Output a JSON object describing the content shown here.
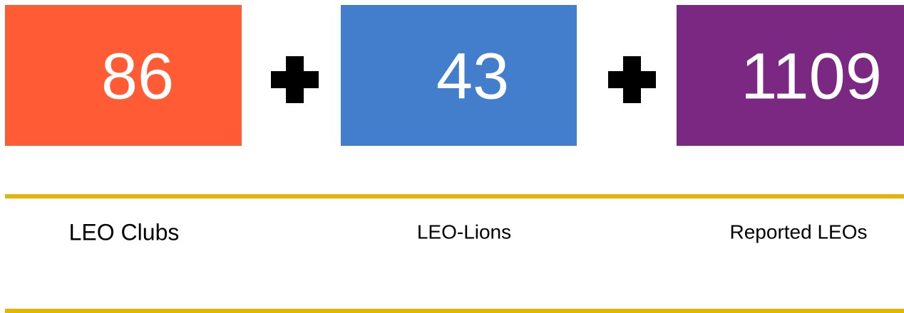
{
  "cards": [
    {
      "value": 86,
      "label": "LEO Clubs"
    },
    {
      "value": 43,
      "label": "LEO-Lions"
    },
    {
      "value": 1109,
      "label": "Reported LEOs"
    }
  ]
}
